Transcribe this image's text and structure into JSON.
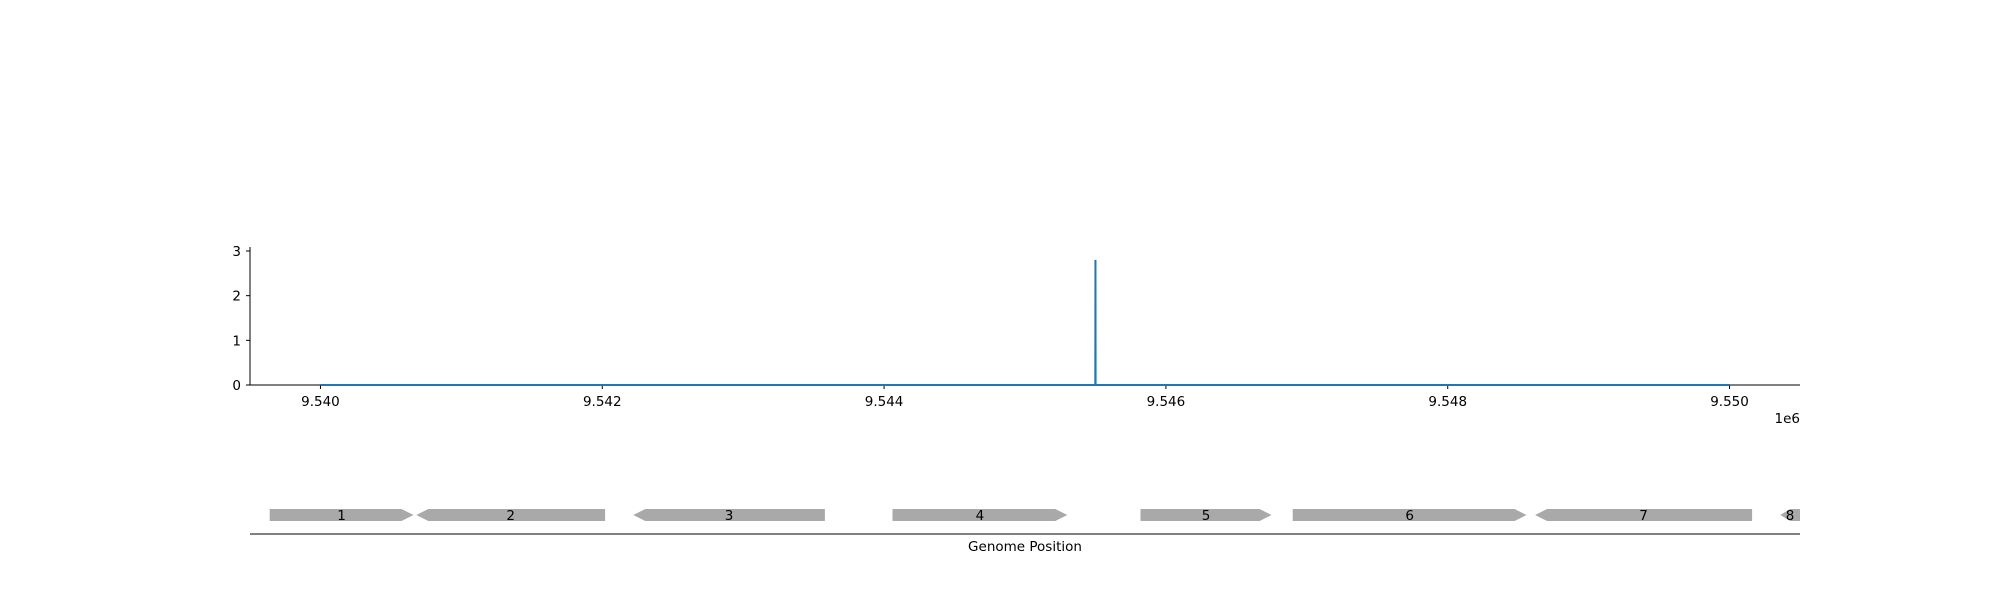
{
  "chart_data": [
    {
      "type": "line",
      "x": [
        9540000,
        9545499,
        9545500,
        9545501,
        9550000
      ],
      "series": [
        {
          "values": [
            0,
            0,
            2.8,
            0,
            0
          ],
          "color": "#1f77b4"
        }
      ],
      "xlim": [
        9539500,
        9550500
      ],
      "ylim": [
        0,
        3
      ],
      "x_ticks": [
        9540000,
        9542000,
        9544000,
        9546000,
        9548000,
        9550000
      ],
      "x_tick_labels": [
        "9.540",
        "9.542",
        "9.544",
        "9.546",
        "9.548",
        "9.550"
      ],
      "x_offset_label": "1e6",
      "y_ticks": [
        0,
        1,
        2,
        3
      ],
      "y_tick_labels": [
        "0",
        "1",
        "2",
        "3"
      ],
      "grid": false,
      "spines": [
        "left",
        "bottom"
      ]
    },
    {
      "type": "gene-track",
      "xlabel": "Genome Position",
      "xlim": [
        9539500,
        9550500
      ],
      "gene_color": "#a9a9a9",
      "genes": [
        {
          "label": "1",
          "start": 9539640,
          "end": 9540660,
          "strand": "+"
        },
        {
          "label": "2",
          "start": 9540680,
          "end": 9542020,
          "strand": "-"
        },
        {
          "label": "3",
          "start": 9542220,
          "end": 9543580,
          "strand": "-"
        },
        {
          "label": "4",
          "start": 9544060,
          "end": 9545300,
          "strand": "+"
        },
        {
          "label": "5",
          "start": 9545820,
          "end": 9546750,
          "strand": "+"
        },
        {
          "label": "6",
          "start": 9546900,
          "end": 9548560,
          "strand": "+"
        },
        {
          "label": "7",
          "start": 9548620,
          "end": 9550160,
          "strand": "-"
        },
        {
          "label": "8",
          "start": 9550360,
          "end": 9550500,
          "strand": "-"
        }
      ]
    }
  ]
}
